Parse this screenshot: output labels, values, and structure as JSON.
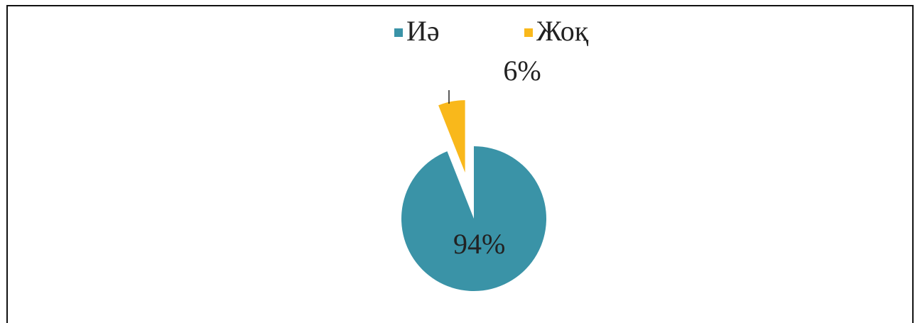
{
  "chart_data": {
    "type": "pie",
    "categories": [
      "Иә",
      "Жоқ"
    ],
    "values": [
      94,
      6
    ],
    "value_labels": [
      "94%",
      "6%"
    ],
    "colors": [
      "#3a93a7",
      "#f9b81b"
    ],
    "legend": "top"
  }
}
